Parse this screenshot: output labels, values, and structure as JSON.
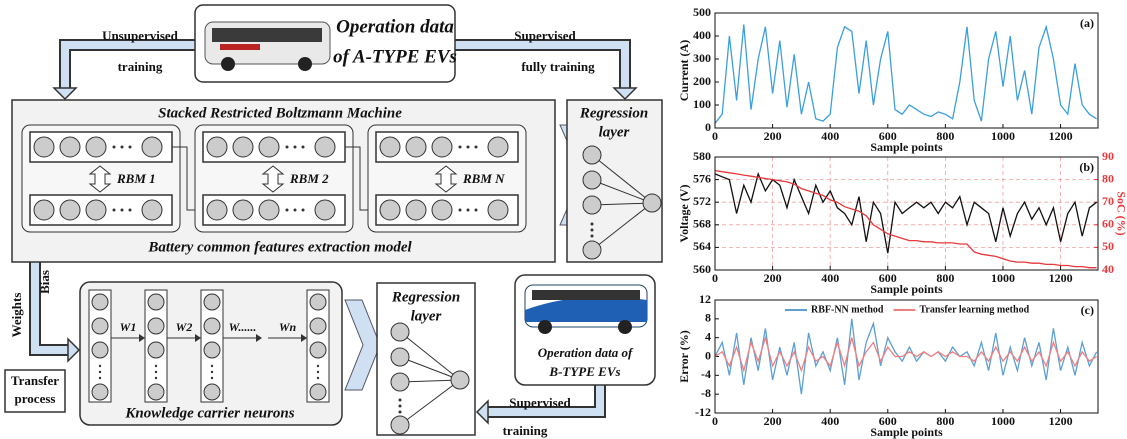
{
  "diagram": {
    "top_box": [
      "Operation data",
      "of A-TYPE EVs"
    ],
    "unsupervised": [
      "Unsupervised",
      "training"
    ],
    "supervised_top": [
      "Supervised",
      "fully training"
    ],
    "srbm_title": "Stacked Restricted Boltzmann Machine",
    "rbm_labels": [
      "RBM 1",
      "RBM 2",
      "RBM N"
    ],
    "srbm_footer": "Battery common features extraction model",
    "regression_top": [
      "Regression",
      "layer"
    ],
    "weights": "Weights",
    "bias": "Bias",
    "transfer": [
      "Transfer",
      "process"
    ],
    "weight_labels": [
      "W1",
      "W2",
      "W......",
      "Wn"
    ],
    "knowledge": "Knowledge carrier neurons",
    "regression_bottom": [
      "Regression",
      "layer"
    ],
    "b_box": [
      "Operation data of",
      "B-TYPE EVs"
    ],
    "supervised_bottom": [
      "Supervised",
      "training"
    ]
  },
  "chart_data": [
    {
      "type": "line",
      "annotation": "(a)",
      "xlabel": "Sample points",
      "ylabel": "Current (A)",
      "x": [
        0,
        25,
        50,
        75,
        100,
        125,
        150,
        175,
        200,
        225,
        250,
        275,
        300,
        325,
        350,
        375,
        400,
        425,
        450,
        475,
        500,
        525,
        550,
        575,
        600,
        625,
        650,
        675,
        700,
        725,
        750,
        775,
        800,
        825,
        850,
        875,
        900,
        925,
        950,
        975,
        1000,
        1025,
        1050,
        1075,
        1100,
        1125,
        1150,
        1175,
        1200,
        1225,
        1250,
        1275,
        1300,
        1325
      ],
      "series": [
        {
          "color": "#3c9fdc",
          "values": [
            20,
            60,
            400,
            120,
            450,
            80,
            300,
            440,
            150,
            380,
            90,
            320,
            60,
            200,
            40,
            30,
            60,
            350,
            440,
            420,
            150,
            380,
            100,
            300,
            420,
            80,
            60,
            100,
            80,
            60,
            50,
            70,
            60,
            40,
            200,
            440,
            120,
            30,
            300,
            420,
            180,
            400,
            120,
            250,
            60,
            350,
            440,
            300,
            100,
            60,
            280,
            100,
            60,
            40
          ]
        }
      ],
      "xlim": [
        0,
        1330
      ],
      "xticks": [
        0,
        200,
        400,
        600,
        800,
        1000,
        1200
      ],
      "ylim": [
        0,
        500
      ],
      "yticks": [
        0,
        100,
        200,
        300,
        400,
        500
      ]
    },
    {
      "type": "line",
      "annotation": "(b)",
      "xlabel": "Sample points",
      "ylabel": "Voltage (V)",
      "y2label": "SoC (%)",
      "x": [
        0,
        25,
        50,
        75,
        100,
        125,
        150,
        175,
        200,
        225,
        250,
        275,
        300,
        325,
        350,
        375,
        400,
        425,
        450,
        475,
        500,
        525,
        550,
        575,
        600,
        625,
        650,
        675,
        700,
        725,
        750,
        775,
        800,
        825,
        850,
        875,
        900,
        925,
        950,
        975,
        1000,
        1025,
        1050,
        1075,
        1100,
        1125,
        1150,
        1175,
        1200,
        1225,
        1250,
        1275,
        1300,
        1325
      ],
      "series": [
        {
          "color": "#111111",
          "values": [
            577,
            576.5,
            576,
            570,
            575,
            572,
            577,
            574,
            576,
            575,
            571,
            576,
            573,
            570,
            575,
            572,
            574,
            571,
            570,
            568,
            573,
            565,
            572,
            570,
            563,
            572,
            570,
            571,
            572,
            571,
            572,
            570,
            572,
            571,
            573,
            568,
            572,
            571,
            570,
            565,
            571,
            566,
            570,
            572,
            569,
            571,
            568,
            571,
            565,
            570,
            572,
            566,
            571,
            572
          ]
        },
        {
          "color": "#e8383b",
          "axis": "y2",
          "values": [
            84,
            83.5,
            83,
            82.5,
            82,
            81.5,
            81,
            80.5,
            80,
            79.5,
            79,
            78,
            76,
            75,
            74,
            73,
            71,
            70,
            68,
            67,
            66,
            64,
            60,
            58,
            56,
            55,
            54,
            53,
            53,
            52.5,
            52.5,
            52,
            52,
            52,
            51.5,
            51.5,
            48,
            47,
            46.5,
            46,
            45,
            44,
            43.5,
            43.5,
            43,
            43,
            42.5,
            42.5,
            42,
            42,
            41.5,
            41.5,
            41,
            41
          ]
        }
      ],
      "xlim": [
        0,
        1330
      ],
      "xticks": [
        0,
        200,
        400,
        600,
        800,
        1000,
        1200
      ],
      "ylim": [
        560,
        580
      ],
      "yticks": [
        560,
        564,
        568,
        572,
        576,
        580
      ],
      "y2lim": [
        40,
        90
      ],
      "y2ticks": [
        40,
        50,
        60,
        70,
        80,
        90
      ],
      "grid": true
    },
    {
      "type": "line",
      "annotation": "(c)",
      "xlabel": "Sample points",
      "ylabel": "Error (%)",
      "legend": "top",
      "x": [
        0,
        25,
        50,
        75,
        100,
        125,
        150,
        175,
        200,
        225,
        250,
        275,
        300,
        325,
        350,
        375,
        400,
        425,
        450,
        475,
        500,
        525,
        550,
        575,
        600,
        625,
        650,
        675,
        700,
        725,
        750,
        775,
        800,
        825,
        850,
        875,
        900,
        925,
        950,
        975,
        1000,
        1025,
        1050,
        1075,
        1100,
        1125,
        1150,
        1175,
        1200,
        1225,
        1250,
        1275,
        1300,
        1325
      ],
      "series": [
        {
          "name": "RBF-NN method",
          "color": "#5b9fd3",
          "values": [
            0,
            3,
            -4,
            5,
            -6,
            4,
            -3,
            6,
            -5,
            2,
            -4,
            3,
            -8,
            5,
            -2,
            1,
            -3,
            4,
            -6,
            8,
            -5,
            3,
            7,
            -2,
            4,
            1,
            -1,
            2,
            -1,
            1,
            0,
            1,
            -1,
            2,
            0,
            1,
            -2,
            3,
            -3,
            5,
            -4,
            2,
            -3,
            4,
            -2,
            3,
            -5,
            6,
            -3,
            2,
            -4,
            3,
            -2,
            1
          ]
        },
        {
          "name": "Transfer learning method",
          "color": "#f08080",
          "values": [
            0,
            1,
            -2,
            2,
            -3,
            3,
            -1,
            4,
            -2,
            1,
            -2,
            1,
            -3,
            2,
            -1,
            0,
            -2,
            3,
            -2,
            4,
            -2,
            1,
            3,
            -1,
            2,
            0,
            0,
            1,
            0,
            1,
            0,
            1,
            0,
            1,
            0,
            0,
            -1,
            1,
            -1,
            2,
            -1,
            1,
            -1,
            2,
            -1,
            1,
            -2,
            3,
            -1,
            1,
            -2,
            1,
            -1,
            0
          ]
        }
      ],
      "xlim": [
        0,
        1330
      ],
      "xticks": [
        0,
        200,
        400,
        600,
        800,
        1000,
        1200
      ],
      "ylim": [
        -12,
        12
      ],
      "yticks": [
        -12,
        -8,
        -4,
        0,
        4,
        8,
        12
      ]
    }
  ]
}
